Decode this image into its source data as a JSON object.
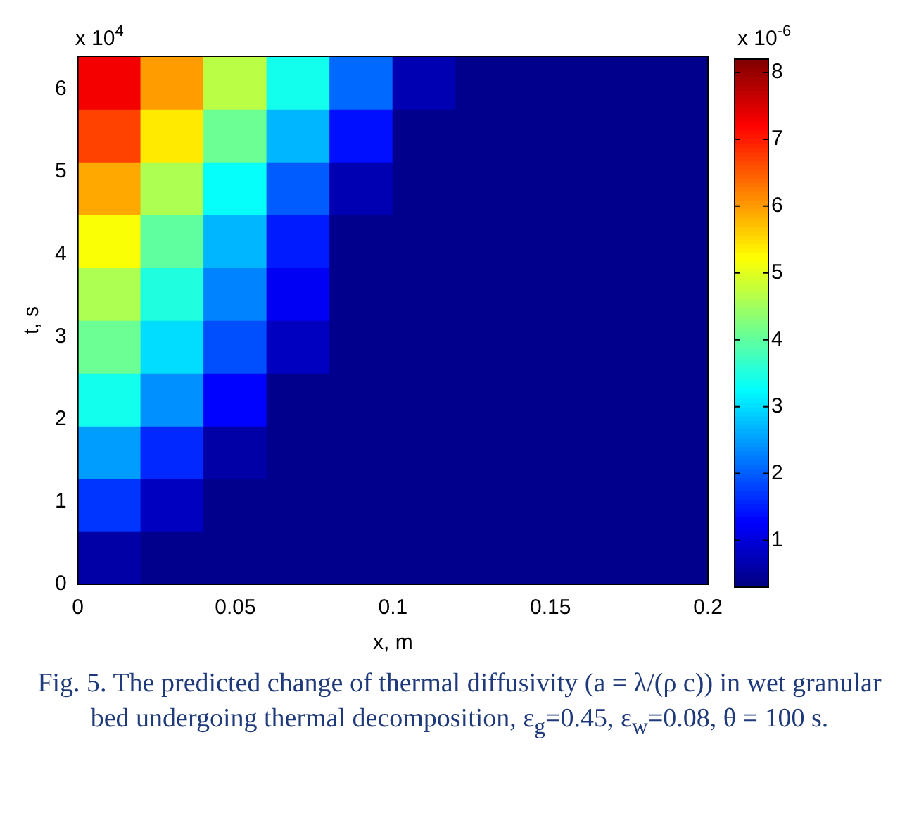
{
  "chart_data": {
    "type": "heatmap",
    "xlabel": "x, m",
    "ylabel": "t, s",
    "clabel": "x 10$^{-6}$",
    "x": [
      0.01,
      0.03,
      0.05,
      0.07,
      0.09,
      0.11,
      0.13,
      0.15,
      0.17,
      0.19
    ],
    "y": [
      6.08,
      5.44,
      4.8,
      4.16,
      3.52,
      2.88,
      2.24,
      1.6,
      0.96,
      0.32
    ],
    "xlim": [
      0,
      0.2
    ],
    "xticks": [
      0,
      0.05,
      0.1,
      0.15,
      0.2
    ],
    "ylim": [
      0,
      6.4
    ],
    "yticks": [
      0,
      1,
      2,
      3,
      4,
      5,
      6
    ],
    "clim": [
      0.3,
      8.2
    ],
    "cticks": [
      1,
      2,
      3,
      4,
      5,
      6,
      7,
      8
    ],
    "cells": [
      [
        7.3,
        6.0,
        4.7,
        3.4,
        2.1,
        0.7,
        0.4,
        0.4,
        0.4,
        0.4
      ],
      [
        6.7,
        5.4,
        4.1,
        2.7,
        1.4,
        0.4,
        0.4,
        0.4,
        0.4,
        0.4
      ],
      [
        5.9,
        4.6,
        3.3,
        2.0,
        0.7,
        0.4,
        0.4,
        0.4,
        0.4,
        0.4
      ],
      [
        5.2,
        4.0,
        2.7,
        1.5,
        0.4,
        0.4,
        0.4,
        0.4,
        0.4,
        0.4
      ],
      [
        4.6,
        3.5,
        2.3,
        1.2,
        0.4,
        0.4,
        0.4,
        0.4,
        0.4,
        0.4
      ],
      [
        4.1,
        3.0,
        1.9,
        0.8,
        0.4,
        0.4,
        0.4,
        0.4,
        0.4,
        0.4
      ],
      [
        3.4,
        2.4,
        1.3,
        0.4,
        0.4,
        0.4,
        0.4,
        0.4,
        0.4,
        0.4
      ],
      [
        2.5,
        1.6,
        0.6,
        0.4,
        0.4,
        0.4,
        0.4,
        0.4,
        0.4,
        0.4
      ],
      [
        1.7,
        0.8,
        0.4,
        0.4,
        0.4,
        0.4,
        0.4,
        0.4,
        0.4,
        0.4
      ],
      [
        0.6,
        0.4,
        0.4,
        0.4,
        0.4,
        0.4,
        0.4,
        0.4,
        0.4,
        0.4
      ]
    ],
    "grid": false,
    "legend": false,
    "annotations": [
      "x 10$^{4}$",
      "Fig. 5. The predicted change of thermal diffusivity (a = λ/(ρ c)) in wet granular bed undergoing thermal decomposition, ε$_{g}$=0.45, ε$_{w}$=0.08, θ = 100 s."
    ]
  }
}
